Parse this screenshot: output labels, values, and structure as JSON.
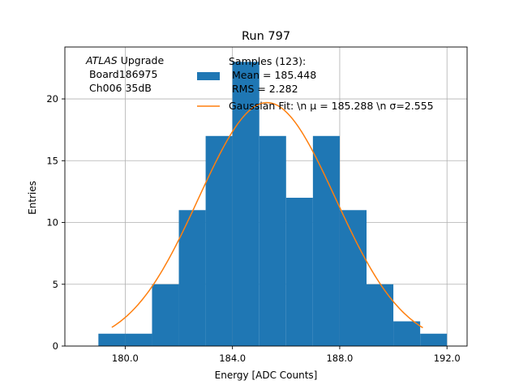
{
  "chart_data": {
    "type": "bar",
    "title": "Run 797",
    "xlabel": "Energy [ADC Counts]",
    "ylabel": "Entries",
    "xlim": [
      177.75,
      192.75
    ],
    "ylim": [
      0,
      24.2
    ],
    "xticks": [
      180,
      184,
      188,
      192
    ],
    "xtick_labels": [
      "180.0",
      "184.0",
      "188.0",
      "192.0"
    ],
    "yticks": [
      0,
      5,
      10,
      15,
      20
    ],
    "ytick_labels": [
      "0",
      "5",
      "10",
      "15",
      "20"
    ],
    "grid": true,
    "bin_edges": [
      179,
      180,
      181,
      182,
      183,
      184,
      185,
      186,
      187,
      188,
      189,
      190,
      191,
      192
    ],
    "counts": [
      1,
      1,
      5,
      11,
      17,
      23,
      17,
      12,
      17,
      11,
      5,
      2,
      1
    ],
    "fit": {
      "amplitude": 19.7,
      "mu": 185.288,
      "sigma": 2.555,
      "x_range": [
        179.5,
        191.1
      ]
    },
    "colors": {
      "bars": "#1f77b4",
      "fit": "#ff7f0e"
    },
    "annotation": {
      "line1_italic": "ATLAS",
      "line1_rest": " Upgrade",
      "line2": " Board186975",
      "line3": " Ch006 35dB"
    },
    "legend": {
      "placement": "top-right",
      "hist_lines": [
        "Samples (123):",
        " Mean = 185.448",
        " RMS = 2.282"
      ],
      "fit_label": "Gaussian Fit: \\n μ = 185.288 \\n σ=2.555"
    }
  }
}
